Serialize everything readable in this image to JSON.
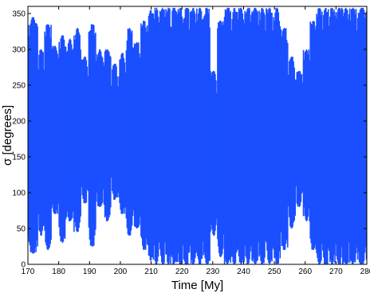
{
  "chart_data": {
    "type": "scatter",
    "title": "",
    "xlabel": "Time [My]",
    "ylabel": "σ [degrees]",
    "xlim": [
      170,
      280
    ],
    "ylim": [
      0,
      360
    ],
    "xticks": [
      170,
      180,
      190,
      200,
      210,
      220,
      230,
      240,
      250,
      260,
      270,
      280
    ],
    "yticks": [
      0,
      50,
      100,
      150,
      200,
      250,
      300,
      350
    ],
    "grid": false,
    "legend": "none",
    "series": [
      {
        "color": "#1a4fff",
        "x": [
          172.3,
          174.2,
          176.5,
          178.8,
          181.2,
          183.7,
          186.0,
          188.5,
          190.8,
          193.4,
          195.8,
          198.2,
          200.6,
          203.0,
          205.4,
          207.8,
          209.9,
          211.8,
          213.7,
          215.6,
          217.3,
          219.4,
          221.5,
          223.6,
          225.8,
          228.0,
          230.3,
          232.6,
          234.8,
          237.0,
          239.2,
          241.4,
          243.8,
          246.1,
          248.4,
          250.8,
          253.2,
          255.7,
          258.1,
          260.5,
          262.6,
          264.6,
          266.6,
          268.7,
          270.9,
          273.2,
          275.5,
          277.8
        ],
        "y_min": [
          15,
          40,
          20,
          70,
          30,
          60,
          45,
          85,
          25,
          80,
          60,
          90,
          70,
          40,
          50,
          20,
          5,
          0,
          0,
          0,
          0,
          0,
          0,
          0,
          0,
          0,
          40,
          10,
          0,
          0,
          0,
          0,
          0,
          0,
          0,
          0,
          20,
          50,
          80,
          60,
          20,
          0,
          0,
          0,
          0,
          0,
          0,
          0
        ],
        "y_max": [
          345,
          300,
          335,
          305,
          320,
          315,
          330,
          290,
          335,
          300,
          300,
          280,
          295,
          330,
          310,
          340,
          355,
          358,
          358,
          358,
          358,
          358,
          358,
          358,
          358,
          358,
          270,
          340,
          358,
          358,
          358,
          358,
          358,
          358,
          358,
          358,
          330,
          290,
          270,
          300,
          340,
          358,
          358,
          358,
          358,
          358,
          358,
          358
        ]
      }
    ]
  }
}
